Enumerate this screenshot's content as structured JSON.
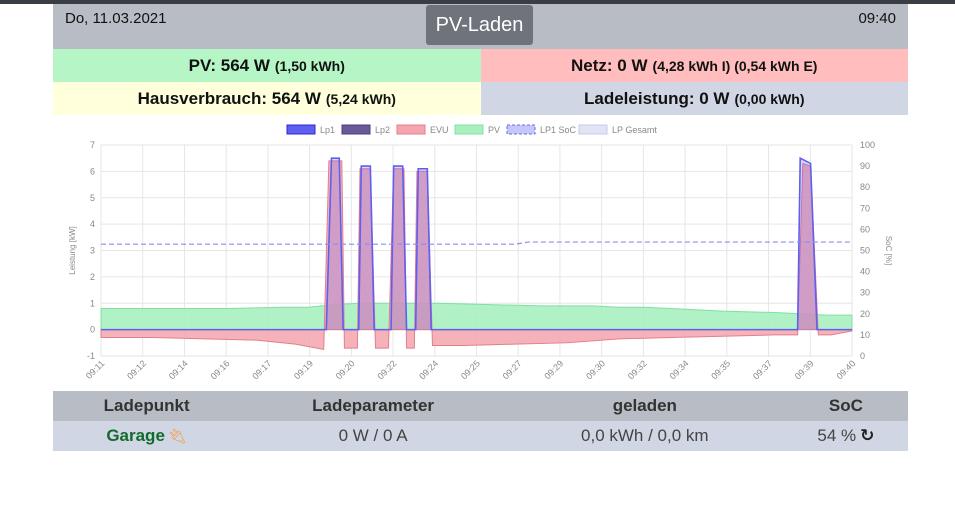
{
  "header": {
    "date": "Do, 11.03.2021",
    "title": "PV-Laden",
    "time": "09:40"
  },
  "summary": {
    "pv_label": "PV: 564 W",
    "pv_detail": "(1,50 kWh)",
    "netz_label": "Netz: 0 W",
    "netz_detail": "(4,28 kWh I) (0,54 kWh E)",
    "haus_label": "Hausverbrauch: 564 W",
    "haus_detail": "(5,24 kWh)",
    "lade_label": "Ladeleistung: 0 W",
    "lade_detail": "(0,00 kWh)"
  },
  "table": {
    "headers": [
      "Ladepunkt",
      "Ladeparameter",
      "geladen",
      "SoC"
    ],
    "row": {
      "ladepunkt": "Garage",
      "ladeparameter": "0 W / 0 A",
      "geladen": "0,0 kWh / 0,0 km",
      "soc": "54 %"
    }
  },
  "colors": {
    "lp1": "#5f5ff0",
    "lp2": "#6a5a9a",
    "evu": "#f4a5ad",
    "pv": "#a8f0c0",
    "soc": "#8c8cf0",
    "lp_gesamt": "#e3e3f6"
  },
  "chart_data": {
    "type": "line",
    "legend": [
      "Lp1",
      "Lp2",
      "EVU",
      "PV",
      "LP1 SoC",
      "LP Gesamt"
    ],
    "legend_position": "top",
    "ylabel_left": "Leistung [kW]",
    "ylabel_right": "SoC [%]",
    "ylim_left": [
      -1,
      7
    ],
    "ylim_right": [
      0,
      100
    ],
    "yticks_left": [
      "7",
      "6",
      "5",
      "4",
      "3",
      "2",
      "1",
      "0",
      "-1"
    ],
    "yticks_right": [
      "100",
      "90",
      "80",
      "70",
      "60",
      "50",
      "40",
      "30",
      "20",
      "10",
      "0"
    ],
    "xticks": [
      "09:11",
      "09:12",
      "09:14",
      "09:16",
      "09:17",
      "09:19",
      "09:20",
      "09:22",
      "09:24",
      "09:25",
      "09:27",
      "09:29",
      "09:30",
      "09:32",
      "09:34",
      "09:35",
      "09:37",
      "09:39",
      "09:40"
    ],
    "x_minutes": [
      0,
      29
    ],
    "series": [
      {
        "name": "PV",
        "points": [
          [
            0,
            0.8
          ],
          [
            1,
            0.8
          ],
          [
            3,
            0.8
          ],
          [
            5,
            0.8
          ],
          [
            7,
            0.85
          ],
          [
            8,
            0.85
          ],
          [
            9,
            0.95
          ],
          [
            10,
            1.0
          ],
          [
            11,
            1.0
          ],
          [
            13,
            1.0
          ],
          [
            15,
            0.95
          ],
          [
            17,
            0.9
          ],
          [
            19,
            0.9
          ],
          [
            20,
            0.85
          ],
          [
            21,
            0.85
          ],
          [
            22,
            0.8
          ],
          [
            24,
            0.7
          ],
          [
            26,
            0.65
          ],
          [
            27,
            0.6
          ],
          [
            28,
            0.55
          ],
          [
            29,
            0.55
          ]
        ]
      },
      {
        "name": "EVU",
        "points": [
          [
            0,
            -0.3
          ],
          [
            2,
            -0.3
          ],
          [
            4,
            -0.35
          ],
          [
            6,
            -0.4
          ],
          [
            7.5,
            -0.55
          ],
          [
            8.6,
            -0.75
          ],
          [
            8.8,
            6.4
          ],
          [
            9.3,
            6.4
          ],
          [
            9.4,
            -0.7
          ],
          [
            9.9,
            -0.7
          ],
          [
            10,
            6.1
          ],
          [
            10.4,
            6.1
          ],
          [
            10.6,
            -0.7
          ],
          [
            11.1,
            -0.7
          ],
          [
            11.3,
            6.1
          ],
          [
            11.7,
            6.1
          ],
          [
            11.8,
            -0.7
          ],
          [
            12.1,
            -0.7
          ],
          [
            12.2,
            6.0
          ],
          [
            12.6,
            6.0
          ],
          [
            12.8,
            -0.6
          ],
          [
            14,
            -0.6
          ],
          [
            16,
            -0.55
          ],
          [
            18,
            -0.5
          ],
          [
            20,
            -0.35
          ],
          [
            22,
            -0.3
          ],
          [
            24,
            -0.25
          ],
          [
            26,
            -0.2
          ],
          [
            26.9,
            -0.2
          ],
          [
            27.1,
            6.3
          ],
          [
            27.4,
            6.2
          ],
          [
            27.7,
            -0.2
          ],
          [
            28.2,
            -0.2
          ],
          [
            29,
            -0.05
          ]
        ]
      },
      {
        "name": "Lp1",
        "points": [
          [
            0,
            0
          ],
          [
            8.7,
            0
          ],
          [
            8.9,
            6.5
          ],
          [
            9.2,
            6.5
          ],
          [
            9.35,
            0
          ],
          [
            9.95,
            0
          ],
          [
            10.05,
            6.2
          ],
          [
            10.4,
            6.2
          ],
          [
            10.55,
            0
          ],
          [
            11.2,
            0
          ],
          [
            11.3,
            6.2
          ],
          [
            11.65,
            6.2
          ],
          [
            11.8,
            0
          ],
          [
            12.15,
            0
          ],
          [
            12.25,
            6.1
          ],
          [
            12.6,
            6.1
          ],
          [
            12.75,
            0
          ],
          [
            26.9,
            0
          ],
          [
            27.0,
            6.5
          ],
          [
            27.4,
            6.3
          ],
          [
            27.65,
            0
          ],
          [
            29,
            0
          ]
        ]
      },
      {
        "name": "LP1 SoC",
        "axis": "right",
        "points": [
          [
            0,
            53
          ],
          [
            16,
            53
          ],
          [
            16.5,
            54
          ],
          [
            29,
            54
          ]
        ]
      }
    ]
  }
}
